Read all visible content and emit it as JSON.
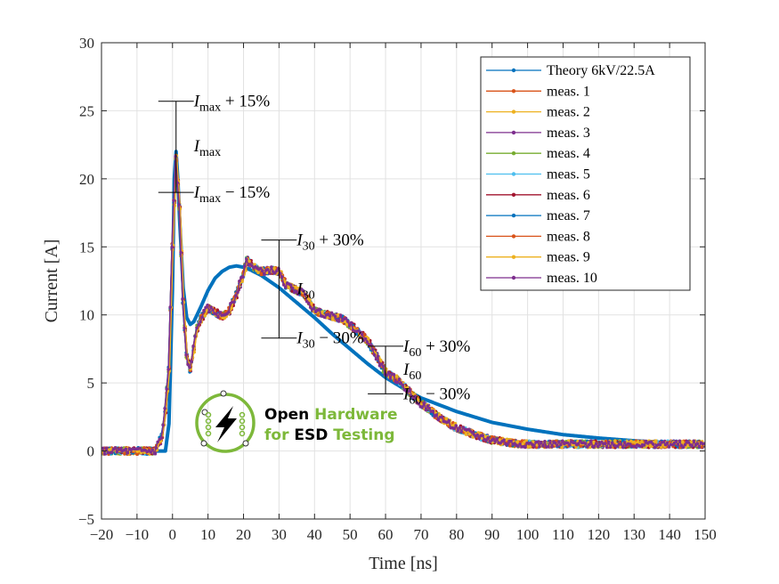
{
  "chart_data": {
    "type": "line",
    "xlabel": "Time [ns]",
    "ylabel": "Current [A]",
    "xlim": [
      -20,
      150
    ],
    "ylim": [
      -5,
      30
    ],
    "xticks": [
      -20,
      -10,
      0,
      10,
      20,
      30,
      40,
      50,
      60,
      70,
      80,
      90,
      100,
      110,
      120,
      130,
      140,
      150
    ],
    "yticks": [
      -5,
      0,
      5,
      10,
      15,
      20,
      25,
      30
    ],
    "grid": true,
    "legend_position": "top-right",
    "theory": {
      "name": "Theory 6kV/22.5A",
      "color": "#0072BD",
      "x": [
        -20,
        -2,
        -1,
        0,
        0.5,
        1,
        1.5,
        2,
        3,
        4,
        5,
        6,
        8,
        10,
        12,
        14,
        16,
        18,
        20,
        22,
        25,
        30,
        35,
        40,
        45,
        50,
        55,
        60,
        65,
        70,
        80,
        90,
        100,
        110,
        120,
        130,
        140,
        150
      ],
      "y": [
        0,
        0,
        2,
        12,
        20,
        22,
        20,
        17,
        12,
        9.8,
        9.3,
        9.5,
        10.6,
        11.8,
        12.7,
        13.2,
        13.5,
        13.6,
        13.5,
        13.3,
        12.9,
        12.0,
        10.9,
        9.8,
        8.6,
        7.5,
        6.4,
        5.4,
        4.6,
        3.9,
        2.9,
        2.1,
        1.6,
        1.2,
        0.95,
        0.75,
        0.6,
        0.5
      ]
    },
    "measurement_trace": {
      "x": [
        -20,
        -5,
        -3,
        -2,
        -1,
        0,
        1,
        2,
        3,
        4,
        5,
        6,
        7,
        8,
        10,
        12,
        14,
        16,
        18,
        20,
        21,
        23,
        25,
        28,
        30,
        32,
        35,
        37,
        40,
        45,
        48,
        50,
        55,
        60,
        63,
        65,
        70,
        75,
        80,
        85,
        90,
        95,
        100,
        110,
        120,
        130,
        140,
        150
      ],
      "y": [
        0,
        0,
        1,
        3,
        6,
        15,
        21.5,
        18,
        11,
        7,
        6,
        7.5,
        9,
        9.7,
        10.5,
        10.2,
        9.9,
        10.3,
        11.5,
        13,
        14,
        13.5,
        13.2,
        13.3,
        13.2,
        12.2,
        11.8,
        11.6,
        10.3,
        9.9,
        9.7,
        9.3,
        8.1,
        5.8,
        5.3,
        4.8,
        3.5,
        2.5,
        1.7,
        1.2,
        0.8,
        0.6,
        0.5,
        0.5,
        0.5,
        0.5,
        0.5,
        0.5
      ]
    },
    "series": [
      {
        "name": "meas. 1",
        "color": "#D95319"
      },
      {
        "name": "meas. 2",
        "color": "#EDB120"
      },
      {
        "name": "meas. 3",
        "color": "#7E2F8E"
      },
      {
        "name": "meas. 4",
        "color": "#77AC30"
      },
      {
        "name": "meas. 5",
        "color": "#4DBEEE"
      },
      {
        "name": "meas. 6",
        "color": "#A2142F"
      },
      {
        "name": "meas. 7",
        "color": "#0072BD"
      },
      {
        "name": "meas. 8",
        "color": "#D95319"
      },
      {
        "name": "meas. 9",
        "color": "#EDB120"
      },
      {
        "name": "meas. 10",
        "color": "#7E2F8E"
      }
    ],
    "annotations": [
      {
        "x": 1,
        "center": 22.4,
        "upper": 25.7,
        "lower": 19.0,
        "half_width": 5,
        "upper_label": {
          "base": "I",
          "sub": "max",
          "suffix": " + 15%"
        },
        "center_label": {
          "base": "I",
          "sub": "max",
          "suffix": ""
        },
        "lower_label": {
          "base": "I",
          "sub": "max",
          "suffix": " − 15%"
        }
      },
      {
        "x": 30,
        "center": 11.9,
        "upper": 15.5,
        "lower": 8.3,
        "half_width": 5,
        "upper_label": {
          "base": "I",
          "sub": "30",
          "suffix": " + 30%"
        },
        "center_label": {
          "base": "I",
          "sub": "30",
          "suffix": ""
        },
        "lower_label": {
          "base": "I",
          "sub": "30",
          "suffix": " − 30%"
        }
      },
      {
        "x": 60,
        "center": 6.0,
        "upper": 7.7,
        "lower": 4.2,
        "half_width": 5,
        "upper_label": {
          "base": "I",
          "sub": "60",
          "suffix": " + 30%"
        },
        "center_label": {
          "base": "I",
          "sub": "60",
          "suffix": ""
        },
        "lower_label": {
          "base": "I",
          "sub": "60",
          "suffix": " − 30%"
        }
      }
    ]
  },
  "logo": {
    "line1a": "Open",
    "line1b": "Hardware",
    "line2a": "for",
    "line2b": "ESD",
    "line2c": "Testing",
    "green": "#7DB83A"
  }
}
